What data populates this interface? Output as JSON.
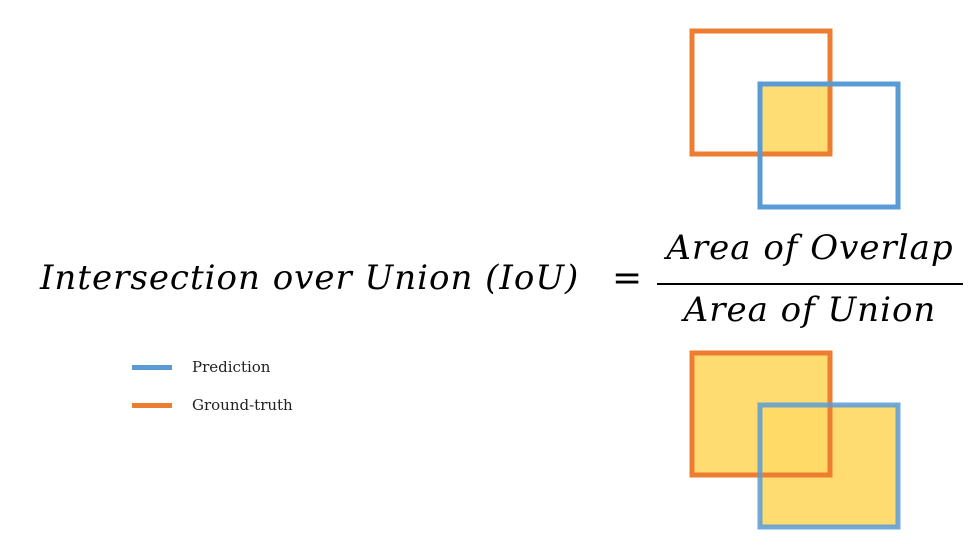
{
  "formula": {
    "lhs": "Intersection over Union (IoU)",
    "equals": "=",
    "numerator": "Area of Overlap",
    "denominator": "Area of Union"
  },
  "legend": {
    "items": [
      {
        "label": "Prediction",
        "color": "#5b9bd5"
      },
      {
        "label": "Ground-truth",
        "color": "#ed7d31"
      }
    ]
  },
  "colors": {
    "prediction": "#5b9bd5",
    "ground_truth": "#ed7d31",
    "fill": "#ffd966"
  }
}
